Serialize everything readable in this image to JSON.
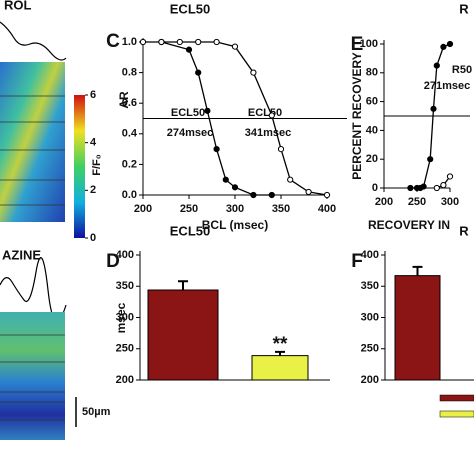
{
  "chart_data": [
    {
      "type": "line",
      "label": "C",
      "title": "ECL50",
      "xlabel": "BCL (msec)",
      "ylabel": "AR",
      "xlim": [
        200,
        400
      ],
      "xticks": [
        200,
        250,
        300,
        350,
        400
      ],
      "ylim": [
        0,
        1
      ],
      "yticks": [
        {
          "value": 0,
          "label": "0.0"
        },
        0.2,
        0.4,
        0.6,
        0.8,
        {
          "value": 1,
          "label": "1.0"
        }
      ],
      "hline": 0.5,
      "series": [
        {
          "fill": "#000000",
          "x": [
            220,
            250,
            260,
            270,
            280,
            290,
            300,
            320,
            340
          ],
          "values": [
            1.0,
            0.95,
            0.8,
            0.55,
            0.3,
            0.1,
            0.05,
            0.0,
            0.0
          ]
        },
        {
          "fill": "#ffffff",
          "x": [
            200,
            220,
            240,
            260,
            280,
            300,
            320,
            340,
            350,
            360,
            380,
            400
          ],
          "values": [
            1.0,
            1.0,
            1.0,
            1.0,
            1.0,
            0.97,
            0.8,
            0.52,
            0.3,
            0.1,
            0.02,
            0.0
          ]
        }
      ],
      "annotations": [
        "ECL50",
        "274msec",
        "ECL50",
        "341msec"
      ]
    },
    {
      "type": "bar",
      "label": "D",
      "title": "ECL50",
      "ylabel": "msec",
      "ylim": [
        200,
        400
      ],
      "yticks": [
        200,
        250,
        300,
        350,
        400
      ],
      "values": [
        344,
        239
      ],
      "errors": [
        14,
        6
      ],
      "colors": [
        "#8b1414",
        "#e9f046"
      ],
      "annotations": [
        "**"
      ]
    },
    {
      "type": "line",
      "label": "E",
      "title": "R",
      "xlabel": "RECOVERY IN",
      "ylabel": "PERCENT RECOVERY",
      "xlim": [
        200,
        300
      ],
      "xticks": [
        200,
        250,
        300
      ],
      "ylim": [
        0,
        100
      ],
      "yticks": [
        0,
        20,
        40,
        60,
        80,
        100
      ],
      "hline": 50,
      "series": [
        {
          "fill": "#000000",
          "x": [
            240,
            250,
            255,
            260,
            270,
            275,
            280,
            290,
            300
          ],
          "values": [
            0,
            0,
            0,
            1,
            20,
            55,
            85,
            98,
            100
          ]
        },
        {
          "fill": "#ffffff",
          "x": [
            280,
            290,
            300
          ],
          "values": [
            0,
            2,
            8
          ]
        }
      ],
      "annotations": [
        "R50",
        "271msec"
      ]
    },
    {
      "type": "bar",
      "label": "F",
      "title": "R",
      "ylim": [
        200,
        400
      ],
      "yticks": [
        200,
        250,
        300,
        350,
        400
      ],
      "values": [
        367
      ],
      "errors": [
        14
      ],
      "colors": [
        "#8b1414"
      ],
      "legend_colors": [
        "#8b1414",
        "#e9f046"
      ]
    }
  ],
  "left_panel": {
    "top_title": "ROL",
    "bottom_title": "AZINE",
    "colorbar_label": "F/F₀",
    "colorbar_ticks": [
      6,
      4,
      2,
      0
    ],
    "colorbar_max": 6,
    "scale_bar": "50µm"
  }
}
